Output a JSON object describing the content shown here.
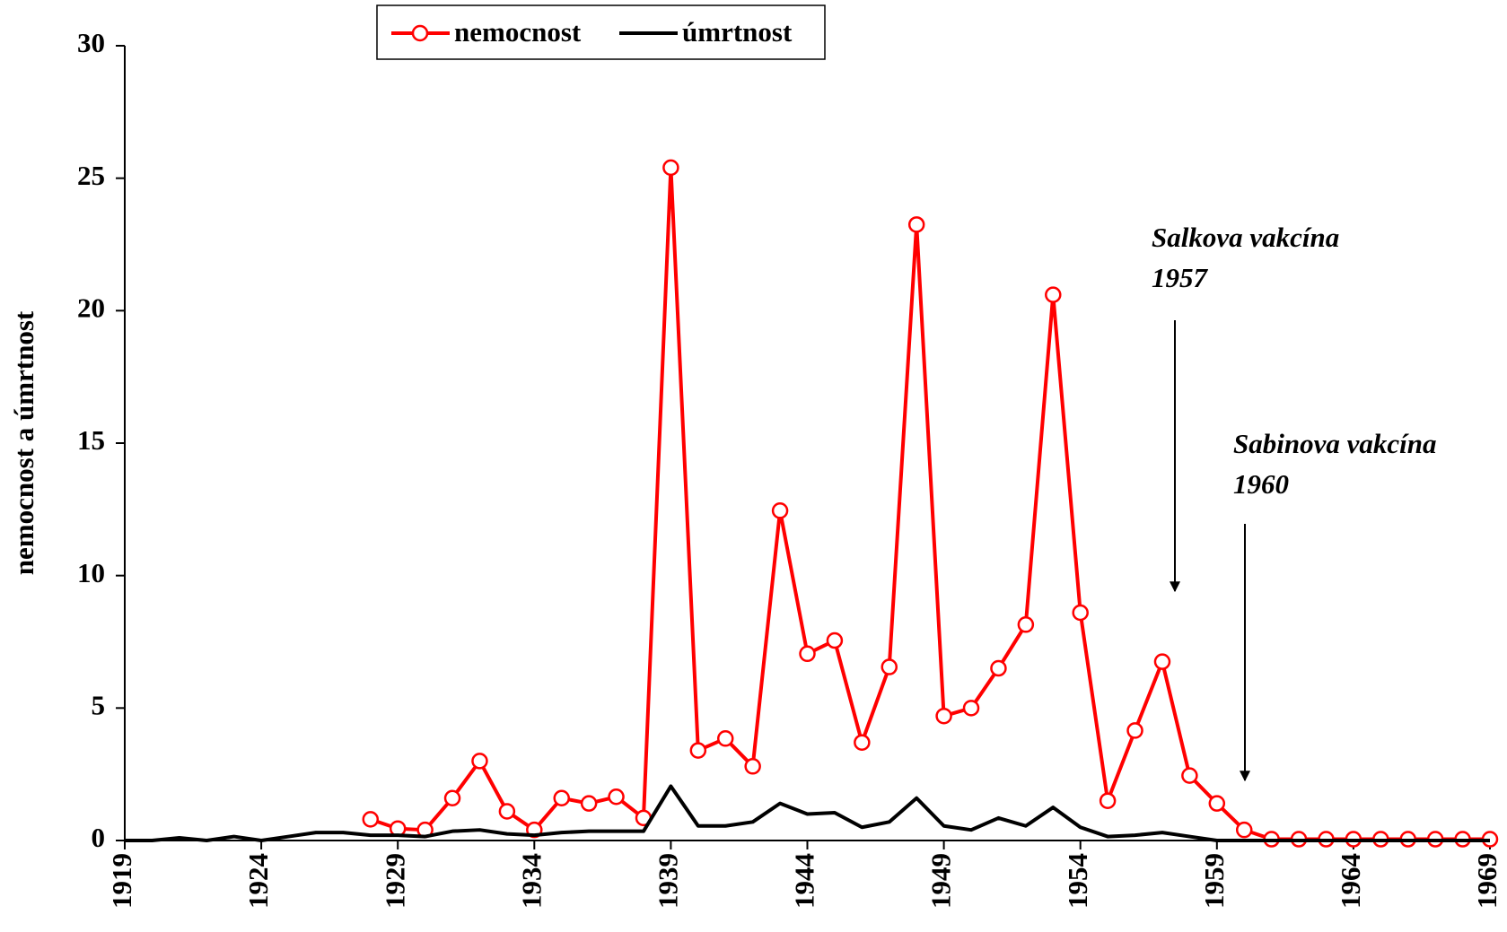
{
  "chart_data": {
    "type": "line",
    "ylabel": "nemocnost a úmrtnost",
    "x": [
      1919,
      1920,
      1921,
      1922,
      1923,
      1924,
      1925,
      1926,
      1927,
      1928,
      1929,
      1930,
      1931,
      1932,
      1933,
      1934,
      1935,
      1936,
      1937,
      1938,
      1939,
      1940,
      1941,
      1942,
      1943,
      1944,
      1945,
      1946,
      1947,
      1948,
      1949,
      1950,
      1951,
      1952,
      1953,
      1954,
      1955,
      1956,
      1957,
      1958,
      1959,
      1960,
      1961,
      1962,
      1963,
      1964,
      1965,
      1966,
      1967,
      1968,
      1969
    ],
    "series": [
      {
        "name": "nemocnost",
        "color": "#ff0000",
        "marker": true,
        "values": [
          null,
          null,
          null,
          null,
          null,
          null,
          null,
          null,
          null,
          0.8,
          0.45,
          0.4,
          1.6,
          3.0,
          1.1,
          0.4,
          1.6,
          1.4,
          1.65,
          0.85,
          25.4,
          3.4,
          3.85,
          2.8,
          12.45,
          7.05,
          7.55,
          3.7,
          6.55,
          23.25,
          4.7,
          5.0,
          6.5,
          8.15,
          20.6,
          8.6,
          1.5,
          4.15,
          6.75,
          2.45,
          1.4,
          0.4,
          0.05,
          0.05,
          0.05,
          0.05,
          0.05,
          0.05,
          0.05,
          0.05,
          0.05
        ]
      },
      {
        "name": "úmrtnost",
        "color": "#000000",
        "marker": false,
        "values": [
          0,
          0,
          0.1,
          0,
          0.15,
          0,
          0.15,
          0.3,
          0.3,
          0.2,
          0.2,
          0.15,
          0.35,
          0.4,
          0.25,
          0.2,
          0.3,
          0.35,
          0.35,
          0.35,
          2.05,
          0.55,
          0.55,
          0.7,
          1.4,
          1.0,
          1.05,
          0.5,
          0.7,
          1.6,
          0.55,
          0.4,
          0.85,
          0.55,
          1.25,
          0.5,
          0.15,
          0.2,
          0.3,
          0.15,
          0,
          0,
          0,
          0,
          0,
          0,
          0,
          0,
          0,
          0,
          0
        ]
      }
    ],
    "xlim": [
      1919,
      1969
    ],
    "xticks": [
      1919,
      1924,
      1929,
      1934,
      1939,
      1944,
      1949,
      1954,
      1959,
      1964,
      1969
    ],
    "ylim": [
      0,
      30
    ],
    "yticks": [
      0,
      5,
      10,
      15,
      20,
      25,
      30
    ],
    "legend": "top",
    "annotations": [
      {
        "lines": [
          "Salkova vakcína",
          "1957"
        ]
      },
      {
        "lines": [
          "Sabinova vakcína",
          "1960"
        ]
      }
    ]
  }
}
